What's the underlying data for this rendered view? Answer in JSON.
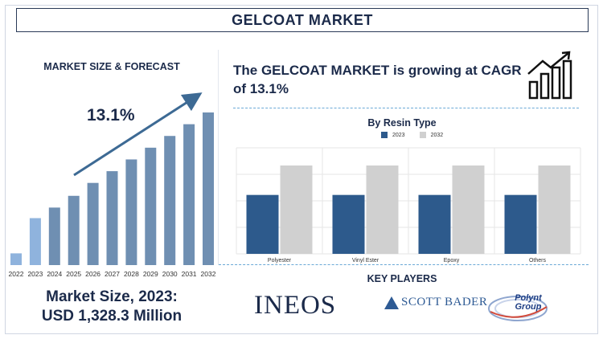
{
  "header": {
    "title": "GELCOAT MARKET"
  },
  "forecast": {
    "subtitle": "MARKET SIZE & FORECAST",
    "cagr_label": "13.1%",
    "market_size_line1": "Market Size, 2023:",
    "market_size_line2": "USD 1,328.3 Million"
  },
  "headline": {
    "text": "The GELCOAT MARKET is growing at CAGR of 13.1%"
  },
  "resin": {
    "title": "By Resin Type"
  },
  "key_players": {
    "title": "KEY PLAYERS",
    "logos": [
      "INEOS",
      "SCOTT BADER",
      "Polynt Group"
    ]
  },
  "colors": {
    "navy": "#1b2a4a",
    "bar_2023": "#2d5a8c",
    "bar_2032": "#d0d0d0",
    "forecast_bar": "#6f8fb2",
    "forecast_bar_first": "#8fb3dd",
    "arrow": "#3d6a94"
  },
  "icons": {
    "growth": "bar-chart-growth-icon"
  },
  "chart_data": [
    {
      "type": "bar",
      "title": "MARKET SIZE & FORECAST",
      "categories": [
        "2022",
        "2023",
        "2024",
        "2025",
        "2026",
        "2027",
        "2028",
        "2029",
        "2030",
        "2031",
        "2032"
      ],
      "values": [
        1.0,
        4.0,
        4.9,
        5.9,
        7.0,
        8.0,
        9.0,
        10.0,
        11.0,
        12.0,
        13.0
      ],
      "annotation": "13.1%",
      "grid": false
    },
    {
      "type": "bar",
      "title": "By Resin Type",
      "categories": [
        "Polyester",
        "Vinyl Ester",
        "Epoxy",
        "Others"
      ],
      "series": [
        {
          "name": "2023",
          "values": [
            2.0,
            2.0,
            2.0,
            2.0
          ]
        },
        {
          "name": "2032",
          "values": [
            3.0,
            3.0,
            3.0,
            3.0
          ]
        }
      ],
      "ylim": [
        0,
        3.6
      ],
      "grid": true,
      "legend": "top"
    }
  ]
}
